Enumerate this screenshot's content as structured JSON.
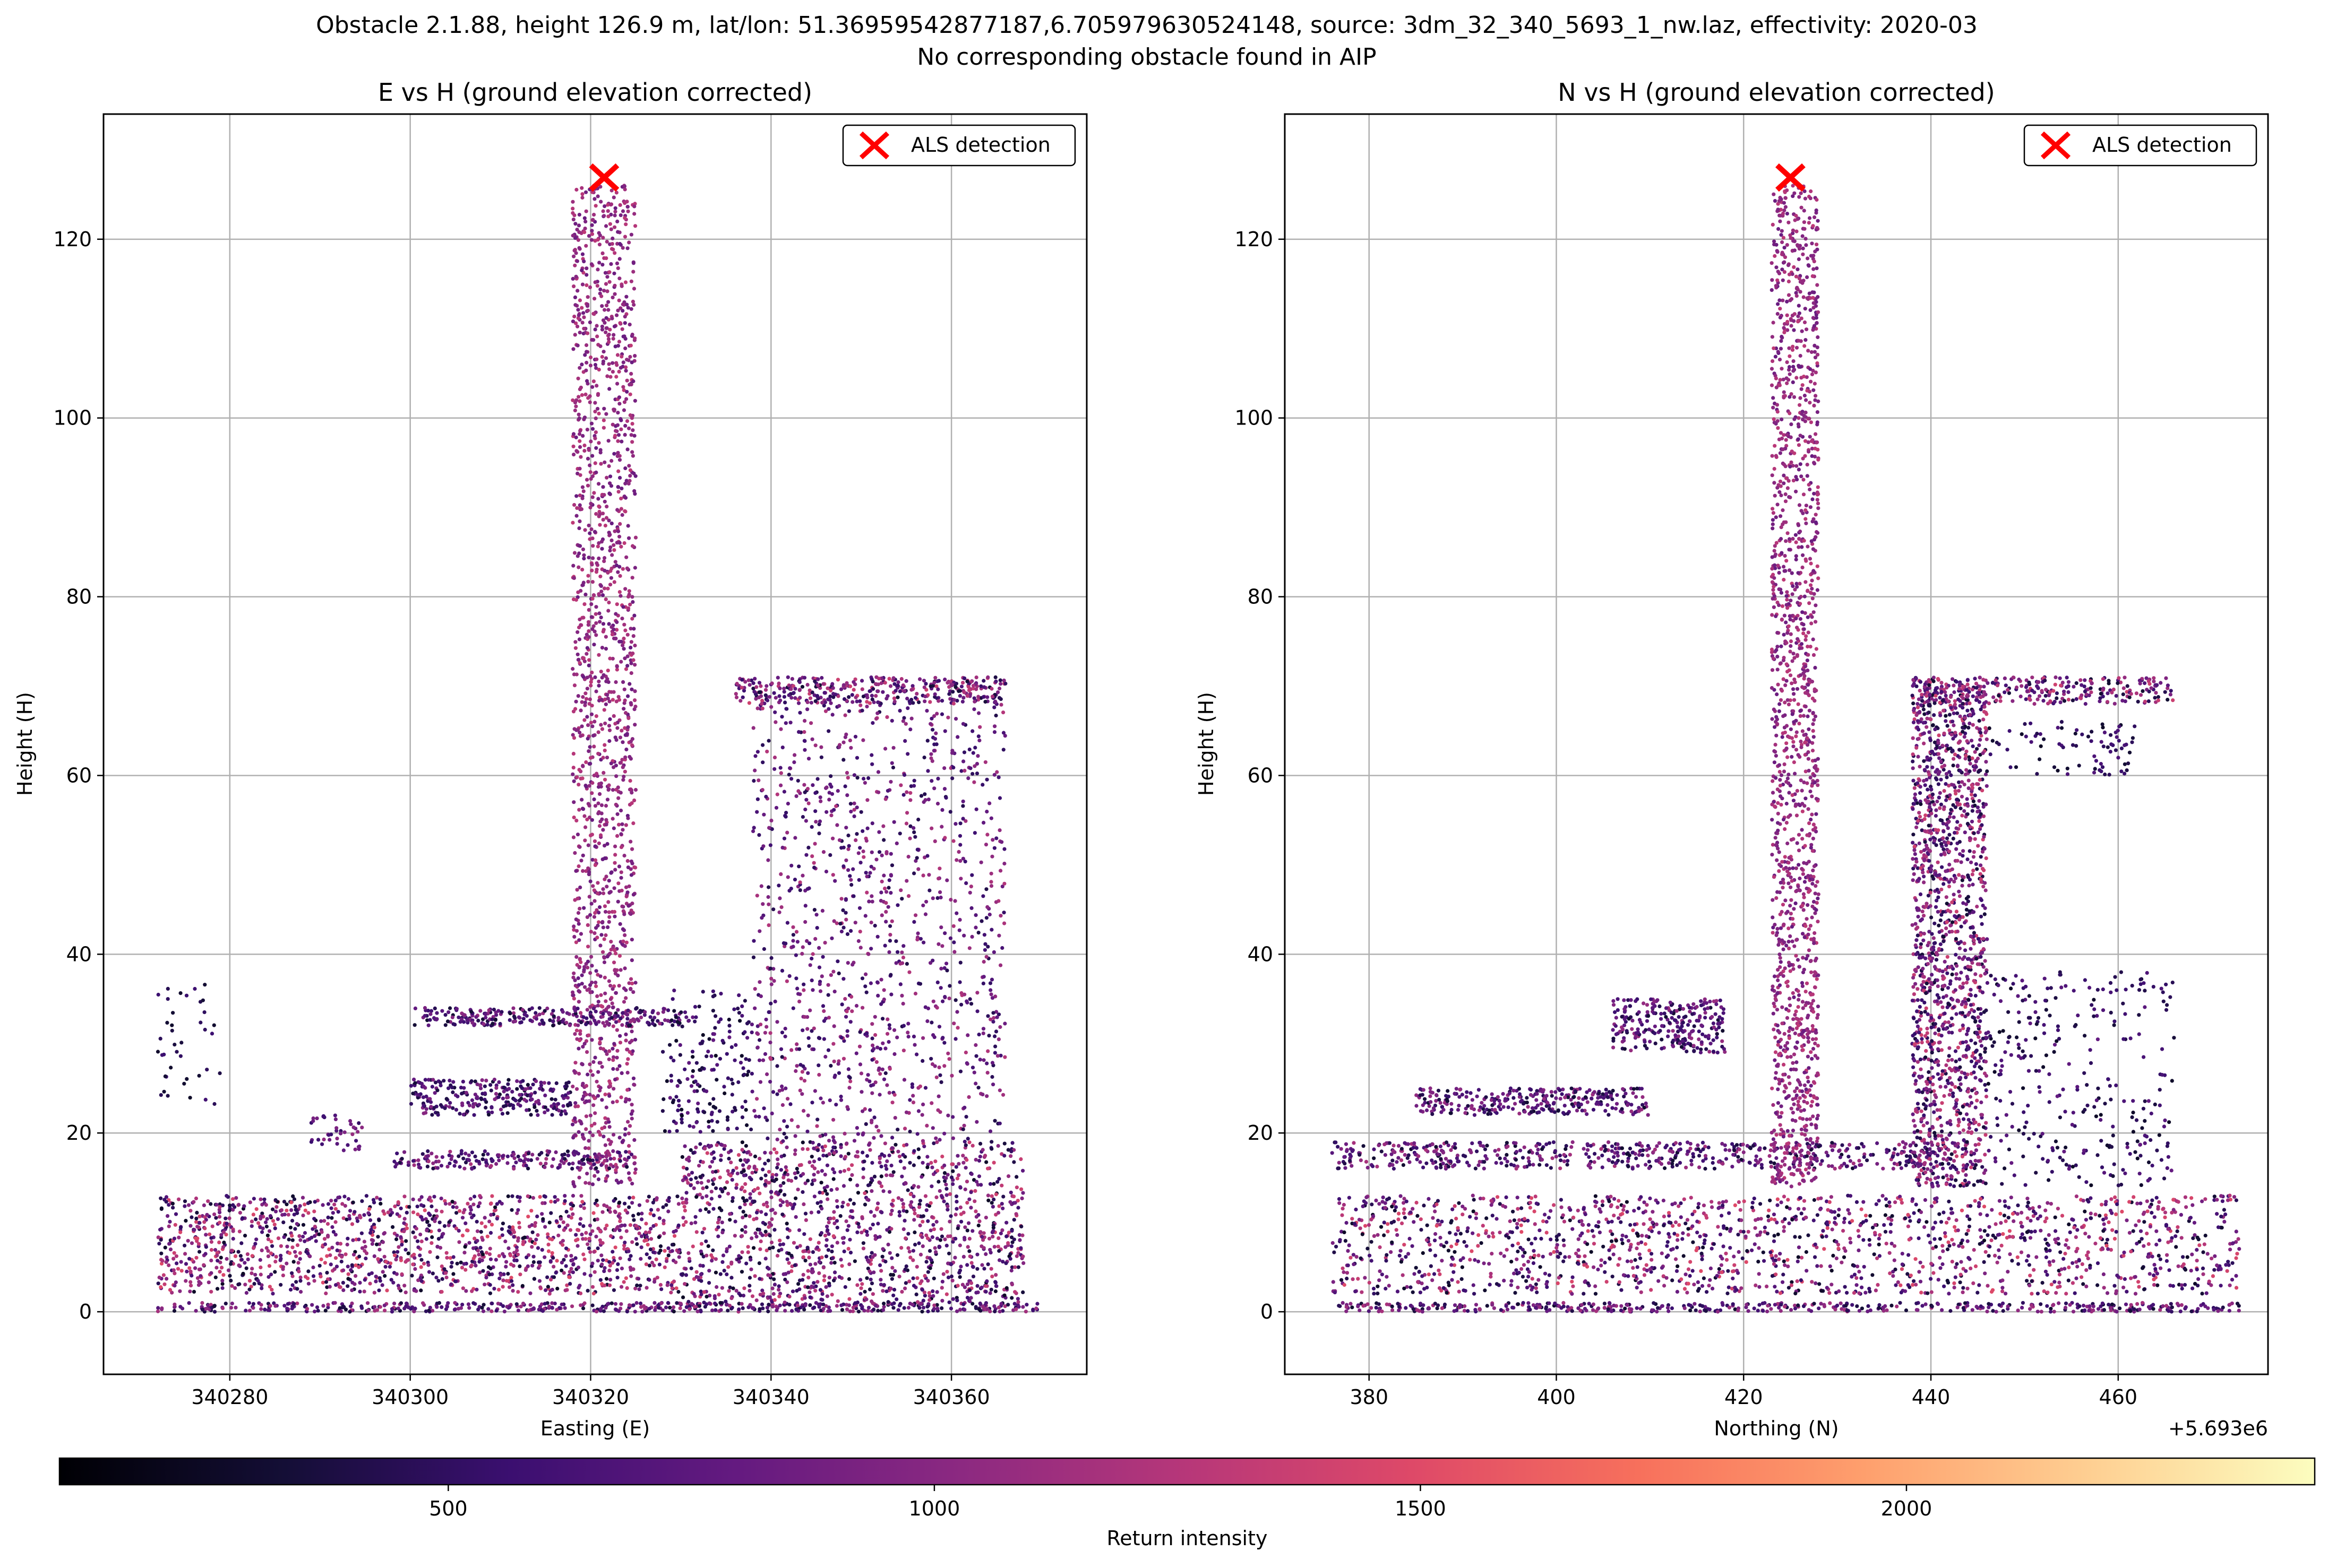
{
  "figure": {
    "title_line1": "Obstacle 2.1.88, height 126.9 m, lat/lon: 51.36959542877187,6.705979630524148, source: 3dm_32_340_5693_1_nw.laz, effectivity: 2020-03",
    "title_line2": "No corresponding obstacle found in AIP"
  },
  "chart_data": [
    {
      "type": "scatter",
      "title": "E vs H (ground elevation corrected)",
      "xlabel": "Easting (E)",
      "ylabel": "Height (H)",
      "xlim": [
        340266,
        340375
      ],
      "ylim": [
        -7,
        134
      ],
      "xticks": [
        340280,
        340300,
        340320,
        340340,
        340360
      ],
      "xtick_labels": [
        "340280",
        "340300",
        "340320",
        "340340",
        "340360"
      ],
      "yticks": [
        0,
        20,
        40,
        60,
        80,
        100,
        120
      ],
      "ytick_labels": [
        "0",
        "20",
        "40",
        "60",
        "80",
        "100",
        "120"
      ],
      "offset_text": "",
      "grid": true,
      "legend": {
        "position": "top-right",
        "entries": [
          "ALS detection"
        ]
      },
      "detection": {
        "x": 340321.5,
        "y": 126.9,
        "color": "#ff0000"
      },
      "point_clusters": [
        {
          "x0": 340272,
          "x1": 340370,
          "y0": 0,
          "y1": 1,
          "n": 500,
          "imin": 300,
          "imax": 1200
        },
        {
          "x0": 340272,
          "x1": 340330,
          "y0": 2,
          "y1": 13,
          "n": 1400,
          "imin": 250,
          "imax": 1500
        },
        {
          "x0": 340330,
          "x1": 340368,
          "y0": 1,
          "y1": 19,
          "n": 1300,
          "imin": 250,
          "imax": 1400
        },
        {
          "x0": 340318,
          "x1": 340325,
          "y0": 14,
          "y1": 126,
          "n": 1600,
          "imin": 800,
          "imax": 1300
        },
        {
          "x0": 340338,
          "x1": 340366,
          "y0": 19,
          "y1": 69,
          "n": 1100,
          "imin": 400,
          "imax": 1250
        },
        {
          "x0": 340336,
          "x1": 340366,
          "y0": 68,
          "y1": 71,
          "n": 350,
          "imin": 300,
          "imax": 1400
        },
        {
          "x0": 340300,
          "x1": 340330,
          "y0": 32,
          "y1": 34,
          "n": 250,
          "imin": 300,
          "imax": 1100
        },
        {
          "x0": 340300,
          "x1": 340318,
          "y0": 22,
          "y1": 26,
          "n": 260,
          "imin": 300,
          "imax": 1000
        },
        {
          "x0": 340298,
          "x1": 340325,
          "y0": 16,
          "y1": 18,
          "n": 200,
          "imin": 350,
          "imax": 1200
        },
        {
          "x0": 340328,
          "x1": 340338,
          "y0": 20,
          "y1": 36,
          "n": 180,
          "imin": 250,
          "imax": 800
        },
        {
          "x0": 340272,
          "x1": 340279,
          "y0": 23,
          "y1": 37,
          "n": 40,
          "imin": 250,
          "imax": 600
        },
        {
          "x0": 340289,
          "x1": 340295,
          "y0": 18,
          "y1": 22,
          "n": 40,
          "imin": 500,
          "imax": 1100
        }
      ],
      "colorbar": {
        "label": "Return intensity",
        "range": [
          100,
          2420
        ],
        "ticks": [
          500,
          1000,
          1500,
          2000
        ],
        "tick_labels": [
          "500",
          "1000",
          "1500",
          "2000"
        ],
        "colormap": "magma"
      }
    },
    {
      "type": "scatter",
      "title": "N vs H (ground elevation corrected)",
      "xlabel": "Northing (N)",
      "ylabel": "Height (H)",
      "xlim": [
        5693371,
        5693476
      ],
      "ylim": [
        -7,
        134
      ],
      "xticks": [
        5693380,
        5693400,
        5693420,
        5693440,
        5693460
      ],
      "xtick_labels": [
        "380",
        "400",
        "420",
        "440",
        "460"
      ],
      "yticks": [
        0,
        20,
        40,
        60,
        80,
        100,
        120
      ],
      "ytick_labels": [
        "0",
        "20",
        "40",
        "60",
        "80",
        "100",
        "120"
      ],
      "offset_text": "+5.693e6",
      "grid": true,
      "legend": {
        "position": "top-right",
        "entries": [
          "ALS detection"
        ]
      },
      "detection": {
        "x": 5693425,
        "y": 126.9,
        "color": "#ff0000"
      },
      "point_clusters": [
        {
          "x0": 5693376,
          "x1": 5693473,
          "y0": 0,
          "y1": 1,
          "n": 450,
          "imin": 300,
          "imax": 1200
        },
        {
          "x0": 5693376,
          "x1": 5693473,
          "y0": 2,
          "y1": 13,
          "n": 1600,
          "imin": 250,
          "imax": 1500
        },
        {
          "x0": 5693376,
          "x1": 5693445,
          "y0": 16,
          "y1": 19,
          "n": 600,
          "imin": 300,
          "imax": 1200
        },
        {
          "x0": 5693423,
          "x1": 5693428,
          "y0": 14,
          "y1": 126,
          "n": 1500,
          "imin": 800,
          "imax": 1300
        },
        {
          "x0": 5693438,
          "x1": 5693446,
          "y0": 14,
          "y1": 70,
          "n": 1500,
          "imin": 300,
          "imax": 1400
        },
        {
          "x0": 5693438,
          "x1": 5693466,
          "y0": 68,
          "y1": 71,
          "n": 300,
          "imin": 300,
          "imax": 1400
        },
        {
          "x0": 5693446,
          "x1": 5693462,
          "y0": 60,
          "y1": 66,
          "n": 80,
          "imin": 250,
          "imax": 700
        },
        {
          "x0": 5693406,
          "x1": 5693418,
          "y0": 29,
          "y1": 35,
          "n": 260,
          "imin": 300,
          "imax": 1100
        },
        {
          "x0": 5693385,
          "x1": 5693410,
          "y0": 22,
          "y1": 25,
          "n": 300,
          "imin": 300,
          "imax": 1100
        },
        {
          "x0": 5693446,
          "x1": 5693466,
          "y0": 14,
          "y1": 38,
          "n": 300,
          "imin": 250,
          "imax": 800
        }
      ]
    }
  ]
}
